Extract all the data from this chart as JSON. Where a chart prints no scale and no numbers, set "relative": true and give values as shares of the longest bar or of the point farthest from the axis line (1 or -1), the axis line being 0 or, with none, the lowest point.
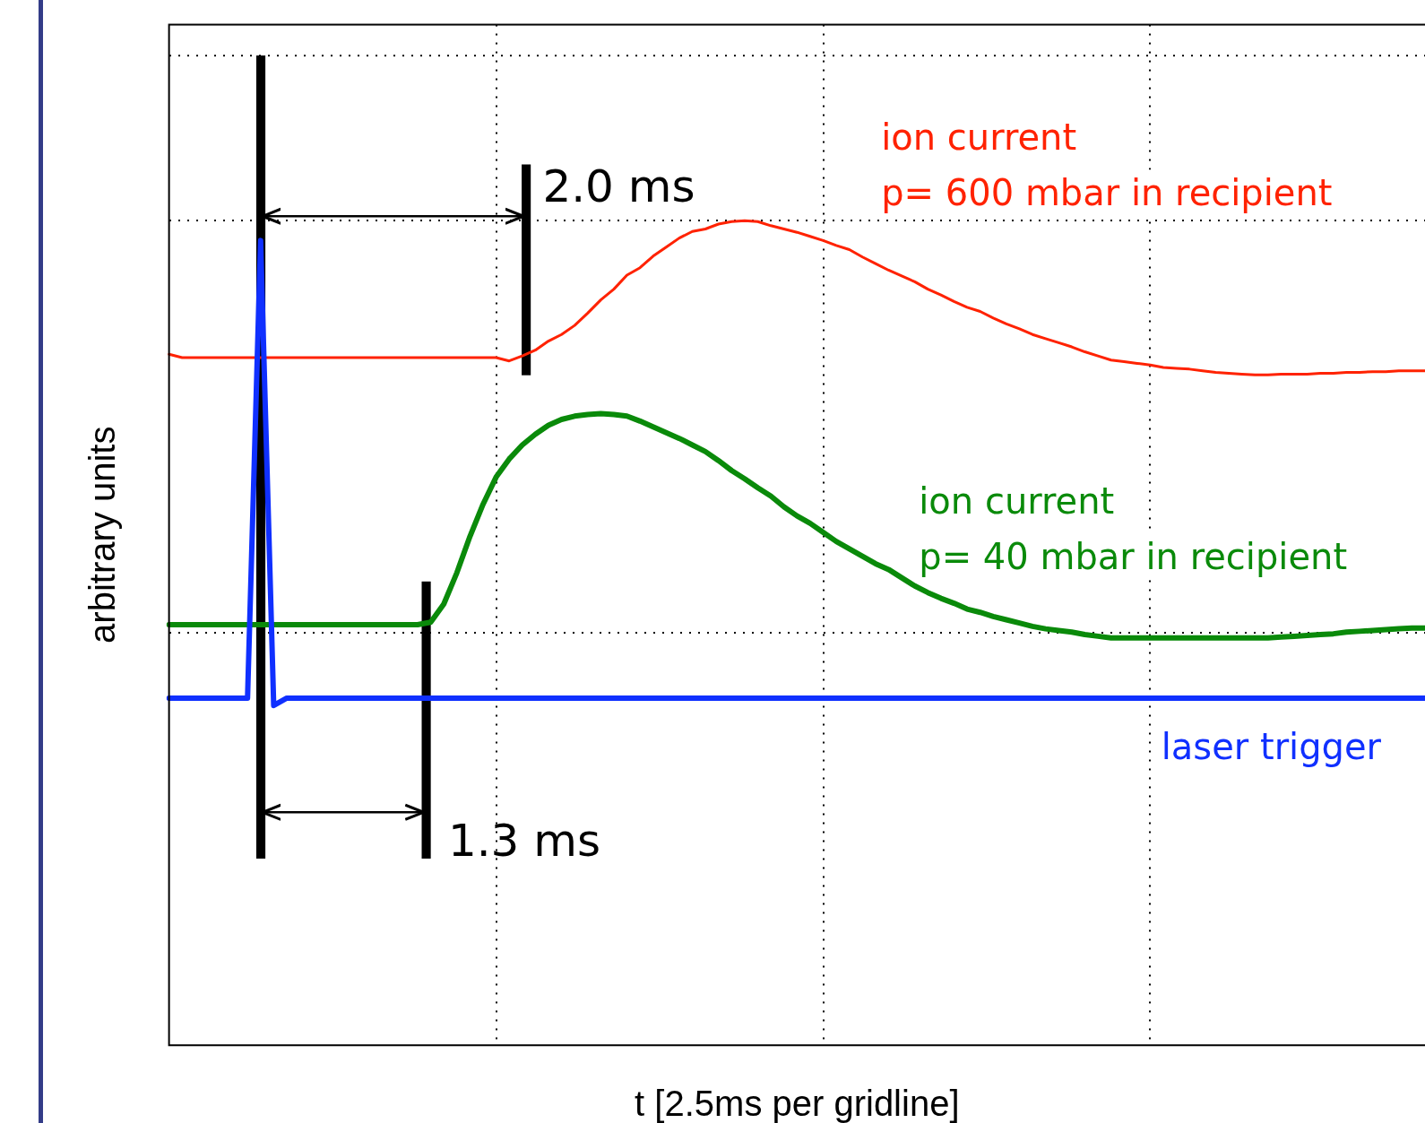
{
  "chart_data": {
    "type": "line",
    "relative": true,
    "grid": true,
    "tick_labels": false,
    "xlabel": "t [2.5ms per gridline]",
    "ylabel": "arbitrary units",
    "annotations": [
      "2.0 ms",
      "1.3 ms"
    ],
    "categories": [
      null,
      null,
      null,
      null,
      null,
      null,
      null,
      null,
      null,
      null,
      null,
      null,
      null,
      null,
      null,
      null,
      null,
      null,
      null,
      null,
      null,
      null,
      null,
      null,
      null,
      null,
      null,
      null,
      null,
      null,
      null,
      null,
      null,
      null,
      null,
      null,
      null,
      null,
      null,
      null,
      null,
      null,
      null,
      null,
      null,
      null,
      null,
      null,
      null,
      null,
      null,
      null,
      null,
      null,
      null,
      null,
      null,
      null,
      null,
      null,
      null,
      null,
      null,
      null,
      null,
      null,
      null,
      null,
      null,
      null,
      null,
      null,
      null,
      null,
      null,
      null,
      null,
      null,
      null,
      null,
      null,
      null,
      null,
      null,
      null,
      null,
      null,
      null,
      null,
      null,
      null,
      null,
      null,
      null,
      null,
      null,
      null
    ],
    "series": [
      {
        "name": "ion current\np= 600 mbar in recipient",
        "color": "#ff2200",
        "values": [
          0.838,
          0.834,
          0.834,
          0.834,
          0.834,
          0.834,
          0.834,
          0.834,
          0.834,
          0.834,
          0.834,
          0.834,
          0.834,
          0.834,
          0.834,
          0.834,
          0.834,
          0.834,
          0.834,
          0.834,
          0.834,
          0.834,
          0.834,
          0.834,
          0.834,
          0.834,
          0.83,
          0.836,
          0.843,
          0.854,
          0.862,
          0.873,
          0.888,
          0.904,
          0.917,
          0.934,
          0.943,
          0.957,
          0.968,
          0.979,
          0.987,
          0.99,
          0.996,
          0.999,
          1,
          0.999,
          0.994,
          0.99,
          0.986,
          0.981,
          0.976,
          0.97,
          0.965,
          0.956,
          0.948,
          0.94,
          0.933,
          0.926,
          0.917,
          0.91,
          0.902,
          0.895,
          0.89,
          0.882,
          0.875,
          0.869,
          0.862,
          0.857,
          0.852,
          0.847,
          0.841,
          0.836,
          0.831,
          0.829,
          0.827,
          0.825,
          0.822,
          0.821,
          0.82,
          0.818,
          0.816,
          0.815,
          0.814,
          0.813,
          0.813,
          0.814,
          0.814,
          0.814,
          0.815,
          0.815,
          0.816,
          0.816,
          0.817,
          0.817,
          0.818,
          0.818,
          0.818
        ]
      },
      {
        "name": "ion current\np= 40 mbar in recipient",
        "color": "#0a8a0a",
        "values": [
          0.51,
          0.51,
          0.51,
          0.51,
          0.51,
          0.51,
          0.51,
          0.51,
          0.51,
          0.51,
          0.51,
          0.51,
          0.51,
          0.51,
          0.51,
          0.51,
          0.51,
          0.51,
          0.51,
          0.51,
          0.513,
          0.535,
          0.573,
          0.617,
          0.656,
          0.689,
          0.711,
          0.728,
          0.741,
          0.752,
          0.759,
          0.763,
          0.765,
          0.766,
          0.765,
          0.763,
          0.757,
          0.75,
          0.743,
          0.736,
          0.728,
          0.72,
          0.709,
          0.697,
          0.687,
          0.676,
          0.666,
          0.653,
          0.642,
          0.633,
          0.622,
          0.611,
          0.602,
          0.593,
          0.584,
          0.577,
          0.567,
          0.557,
          0.549,
          0.542,
          0.536,
          0.529,
          0.525,
          0.52,
          0.516,
          0.512,
          0.508,
          0.505,
          0.503,
          0.501,
          0.498,
          0.496,
          0.494,
          0.494,
          0.494,
          0.494,
          0.494,
          0.494,
          0.494,
          0.494,
          0.494,
          0.494,
          0.494,
          0.494,
          0.494,
          0.495,
          0.496,
          0.497,
          0.498,
          0.499,
          0.501,
          0.502,
          0.503,
          0.504,
          0.505,
          0.506,
          0.506
        ]
      },
      {
        "name": "laser trigger",
        "color": "#1030ff",
        "values": [
          0.421,
          0.421,
          0.421,
          0.421,
          0.421,
          0.421,
          0.421,
          0.976,
          0.412,
          0.421,
          0.421,
          0.421,
          0.421,
          0.421,
          0.421,
          0.421,
          0.421,
          0.421,
          0.421,
          0.421,
          0.421,
          0.421,
          0.421,
          0.421,
          0.421,
          0.421,
          0.421,
          0.421,
          0.421,
          0.421,
          0.421,
          0.421,
          0.421,
          0.421,
          0.421,
          0.421,
          0.421,
          0.421,
          0.421,
          0.421,
          0.421,
          0.421,
          0.421,
          0.421,
          0.421,
          0.421,
          0.421,
          0.421,
          0.421,
          0.421,
          0.421,
          0.421,
          0.421,
          0.421,
          0.421,
          0.421,
          0.421,
          0.421,
          0.421,
          0.421,
          0.421,
          0.421,
          0.421,
          0.421,
          0.421,
          0.421,
          0.421,
          0.421,
          0.421,
          0.421,
          0.421,
          0.421,
          0.421,
          0.421,
          0.421,
          0.421,
          0.421,
          0.421,
          0.421,
          0.421,
          0.421,
          0.421,
          0.421,
          0.421,
          0.421,
          0.421,
          0.421,
          0.421,
          0.421,
          0.421,
          0.421,
          0.421,
          0.421,
          0.421,
          0.421,
          0.421,
          0.421
        ]
      }
    ]
  }
}
